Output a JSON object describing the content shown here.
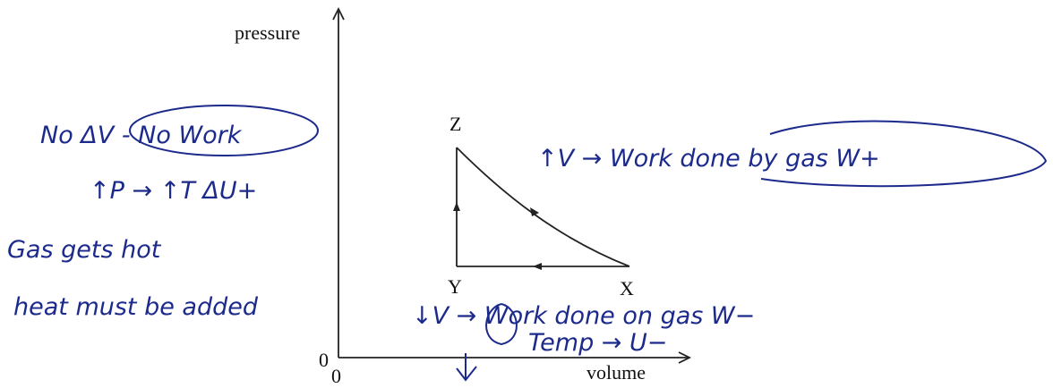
{
  "axes": {
    "y_label": "pressure",
    "x_label": "volume",
    "y_origin": "0",
    "x_origin": "0"
  },
  "points": [
    {
      "label": "Z"
    },
    {
      "label": "Y"
    },
    {
      "label": "X"
    }
  ],
  "annotations": [
    {
      "text": "No ΔV - No Work"
    },
    {
      "text": "↑P → ↑T ΔU+"
    },
    {
      "text": "Gas gets hot"
    },
    {
      "text": "heat must be added"
    },
    {
      "text": "↑V → Work done by gas W+"
    },
    {
      "text": "↓V → Work done on gas W−"
    },
    {
      "text": "Temp → U−"
    }
  ]
}
